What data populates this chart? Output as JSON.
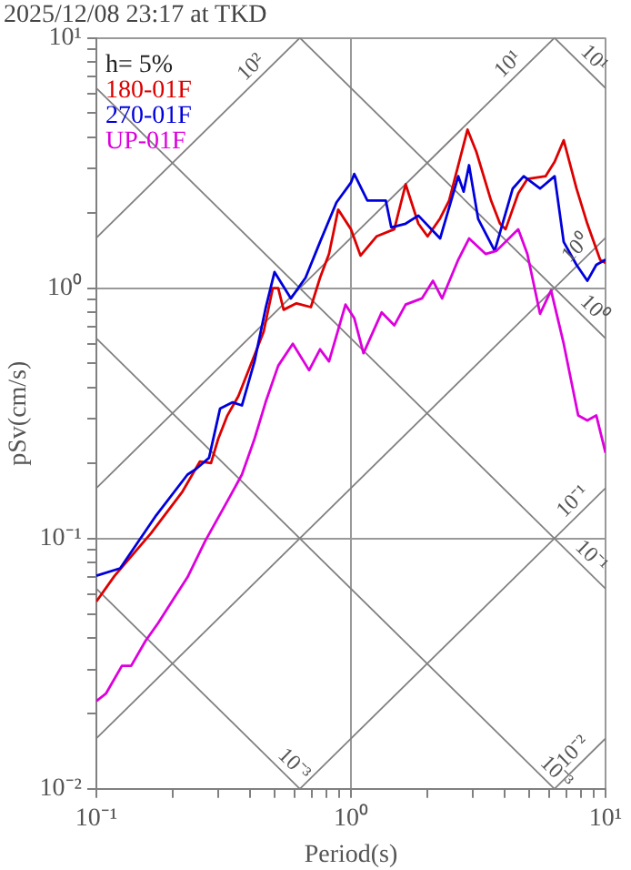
{
  "chart_data": {
    "type": "line",
    "title": "2025/12/08 23:17 at TKD",
    "xlabel": "Period(s)",
    "ylabel": "pSv(cm/s)",
    "log": "xy",
    "grid": true,
    "legend": "top left",
    "xlim": [
      0.1,
      10
    ],
    "ylim": [
      0.01,
      10
    ],
    "xticks": [
      {
        "value": 0.1,
        "label": "10⁻¹"
      },
      {
        "value": 0.2,
        "label": null
      },
      {
        "value": 0.3,
        "label": null
      },
      {
        "value": 0.4,
        "label": null
      },
      {
        "value": 0.5,
        "label": null
      },
      {
        "value": 0.6,
        "label": null
      },
      {
        "value": 0.7,
        "label": null
      },
      {
        "value": 0.8,
        "label": null
      },
      {
        "value": 0.9,
        "label": null
      },
      {
        "value": 1,
        "label": "10⁰"
      },
      {
        "value": 2,
        "label": null
      },
      {
        "value": 3,
        "label": null
      },
      {
        "value": 4,
        "label": null
      },
      {
        "value": 5,
        "label": null
      },
      {
        "value": 6,
        "label": null
      },
      {
        "value": 7,
        "label": null
      },
      {
        "value": 8,
        "label": null
      },
      {
        "value": 9,
        "label": null
      },
      {
        "value": 10,
        "label": "10¹"
      }
    ],
    "yticks": [
      {
        "value": 0.01,
        "label": "10⁻²"
      },
      {
        "value": 0.02,
        "label": null
      },
      {
        "value": 0.03,
        "label": null
      },
      {
        "value": 0.04,
        "label": null
      },
      {
        "value": 0.05,
        "label": null
      },
      {
        "value": 0.06,
        "label": null
      },
      {
        "value": 0.07,
        "label": null
      },
      {
        "value": 0.08,
        "label": null
      },
      {
        "value": 0.09,
        "label": null
      },
      {
        "value": 0.1,
        "label": "10⁻¹"
      },
      {
        "value": 0.2,
        "label": null
      },
      {
        "value": 0.3,
        "label": null
      },
      {
        "value": 0.4,
        "label": null
      },
      {
        "value": 0.5,
        "label": null
      },
      {
        "value": 0.6,
        "label": null
      },
      {
        "value": 0.7,
        "label": null
      },
      {
        "value": 0.8,
        "label": null
      },
      {
        "value": 0.9,
        "label": null
      },
      {
        "value": 1,
        "label": "10⁰"
      },
      {
        "value": 2,
        "label": null
      },
      {
        "value": 3,
        "label": null
      },
      {
        "value": 4,
        "label": null
      },
      {
        "value": 5,
        "label": null
      },
      {
        "value": 6,
        "label": null
      },
      {
        "value": 7,
        "label": null
      },
      {
        "value": 8,
        "label": null
      },
      {
        "value": 9,
        "label": null
      },
      {
        "value": 10,
        "label": "10¹"
      }
    ],
    "series": [
      {
        "type": "line",
        "color": "#808080",
        "x": [
          0.1,
          0.63
        ],
        "values": [
          1.59,
          10
        ]
      },
      {
        "type": "line",
        "color": "#808080",
        "x": [
          0.1,
          6.3
        ],
        "values": [
          0.159,
          10
        ]
      },
      {
        "type": "line",
        "color": "#808080",
        "x": [
          0.1,
          10
        ],
        "values": [
          0.0159,
          1.59
        ]
      },
      {
        "type": "line",
        "color": "#808080",
        "x": [
          0.63,
          10
        ],
        "values": [
          0.01,
          0.159
        ]
      },
      {
        "type": "line",
        "color": "#808080",
        "x": [
          6.3,
          10
        ],
        "values": [
          0.01,
          0.0159
        ]
      },
      {
        "type": "line",
        "color": "#808080",
        "x": [
          6.3,
          10
        ],
        "values": [
          10,
          6.3
        ]
      },
      {
        "type": "line",
        "color": "#808080",
        "x": [
          0.63,
          10
        ],
        "values": [
          10,
          0.63
        ]
      },
      {
        "type": "line",
        "color": "#808080",
        "x": [
          0.1,
          10
        ],
        "values": [
          6.3,
          0.063
        ]
      },
      {
        "type": "line",
        "color": "#808080",
        "x": [
          0.1,
          6.3
        ],
        "values": [
          0.63,
          0.01
        ]
      },
      {
        "type": "line",
        "color": "#808080",
        "x": [
          0.1,
          0.63
        ],
        "values": [
          0.063,
          0.01
        ]
      },
      {
        "type": "line",
        "name": "180-01F",
        "color": "#dd0000",
        "x": [
          0.1,
          0.118,
          0.164,
          0.217,
          0.255,
          0.282,
          0.301,
          0.327,
          0.361,
          0.418,
          0.454,
          0.493,
          0.518,
          0.544,
          0.611,
          0.696,
          0.756,
          0.82,
          0.891,
          1.0,
          1.09,
          1.26,
          1.48,
          1.64,
          1.84,
          2.0,
          2.24,
          2.43,
          2.87,
          3.11,
          3.55,
          3.85,
          4.05,
          4.54,
          4.93,
          5.81,
          6.31,
          6.85,
          7.69,
          8.48,
          9.52,
          10
        ],
        "values": [
          0.056,
          0.071,
          0.105,
          0.153,
          0.203,
          0.2,
          0.25,
          0.31,
          0.37,
          0.54,
          0.67,
          1.0,
          1.0,
          0.82,
          0.87,
          0.84,
          1.1,
          1.37,
          2.06,
          1.72,
          1.35,
          1.61,
          1.72,
          2.6,
          1.81,
          1.61,
          1.9,
          2.24,
          4.3,
          3.5,
          2.24,
          1.81,
          1.72,
          2.39,
          2.73,
          2.8,
          3.2,
          3.9,
          2.5,
          1.81,
          1.3,
          1.26
        ]
      },
      {
        "type": "line",
        "name": "270-01F",
        "color": "#0000dd",
        "x": [
          0.1,
          0.124,
          0.172,
          0.228,
          0.247,
          0.277,
          0.306,
          0.343,
          0.373,
          0.418,
          0.462,
          0.501,
          0.581,
          0.663,
          0.756,
          0.877,
          1.0,
          1.03,
          1.16,
          1.37,
          1.44,
          1.64,
          1.84,
          2.24,
          2.64,
          2.77,
          2.91,
          3.16,
          3.67,
          4.32,
          4.77,
          5.53,
          6.31,
          6.85,
          7.69,
          8.48,
          9.2,
          10
        ],
        "values": [
          0.071,
          0.076,
          0.124,
          0.18,
          0.19,
          0.21,
          0.33,
          0.35,
          0.34,
          0.51,
          0.83,
          1.16,
          0.91,
          1.1,
          1.53,
          2.2,
          2.64,
          2.86,
          2.24,
          2.24,
          1.75,
          1.81,
          1.95,
          1.58,
          2.8,
          2.43,
          3.1,
          1.89,
          1.41,
          2.5,
          2.8,
          2.5,
          2.8,
          1.53,
          1.24,
          1.07,
          1.24,
          1.3
        ]
      },
      {
        "type": "line",
        "name": "UP-01F",
        "color": "#dd00dd",
        "x": [
          0.1,
          0.109,
          0.126,
          0.137,
          0.156,
          0.175,
          0.2,
          0.228,
          0.268,
          0.332,
          0.373,
          0.418,
          0.462,
          0.518,
          0.591,
          0.685,
          0.756,
          0.82,
          0.952,
          1.03,
          1.12,
          1.32,
          1.48,
          1.64,
          1.9,
          2.1,
          2.28,
          2.64,
          2.91,
          3.38,
          3.73,
          4.54,
          4.93,
          5.53,
          6.11,
          6.85,
          7.81,
          8.48,
          9.2,
          10
        ],
        "values": [
          0.0224,
          0.024,
          0.031,
          0.031,
          0.039,
          0.046,
          0.057,
          0.07,
          0.098,
          0.145,
          0.18,
          0.25,
          0.35,
          0.49,
          0.6,
          0.47,
          0.57,
          0.51,
          0.86,
          0.76,
          0.55,
          0.8,
          0.71,
          0.86,
          0.91,
          1.07,
          0.91,
          1.3,
          1.58,
          1.37,
          1.41,
          1.72,
          1.37,
          0.79,
          0.98,
          0.6,
          0.31,
          0.296,
          0.31,
          0.22
        ]
      }
    ],
    "annotations": [
      "h= 5%",
      {
        "text": "10²",
        "x": 0.44,
        "y": 7.0
      },
      {
        "text": "10¹",
        "x": 4.5,
        "y": 7.2
      },
      {
        "text": "10¹",
        "x": 8.3,
        "y": 7.6
      },
      {
        "text": "10⁰",
        "x": 8.3,
        "y": 1.32
      },
      {
        "text": "10⁰",
        "x": 8.3,
        "y": 0.76
      },
      {
        "text": "10⁻¹",
        "x": 8.1,
        "y": 0.129
      },
      {
        "text": "10⁻¹",
        "x": 8.1,
        "y": 0.078
      },
      {
        "text": "10⁻³",
        "x": 0.55,
        "y": 0.0115
      },
      {
        "text": "10⁻³",
        "x": 5.9,
        "y": 0.0107
      },
      {
        "text": "10⁻²",
        "x": 8.1,
        "y": 0.0129
      }
    ]
  }
}
